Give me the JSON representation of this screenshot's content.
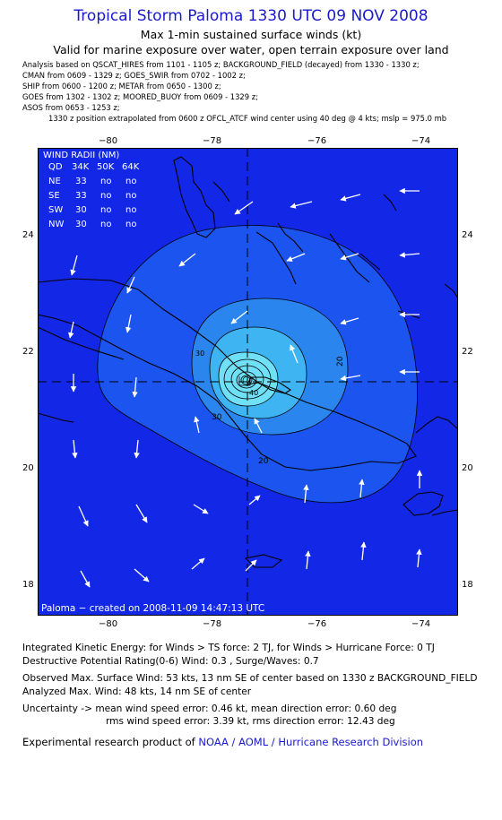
{
  "header": {
    "title": "Tropical Storm Paloma 1330 UTC 09 NOV 2008",
    "subtitle": "Max 1-min sustained surface winds (kt)",
    "valid_note": "Valid for marine exposure over water, open terrain exposure over land"
  },
  "analysis_lines": [
    "Analysis based on  QSCAT_HIRES from 1101 - 1105 z;  BACKGROUND_FIELD (decayed) from 1330 - 1330 z;",
    "CMAN from 0609 - 1329 z;  GOES_SWIR from 0702 - 1002 z;",
    "SHIP from 0600 - 1200 z;  METAR from 0650 - 1300 z;",
    "GOES from 1302 - 1302 z;  MOORED_BUOY from 0609 - 1329 z;",
    "ASOS from 0653 - 1253 z;"
  ],
  "position_note": "1330 z position extrapolated from 0600 z OFCL_ATCF wind center using 40 deg @ 4 kts; mslp = 975.0 mb",
  "map": {
    "lon_ticks": [
      "−80",
      "−78",
      "−76",
      "−74"
    ],
    "lat_ticks": [
      "24",
      "22",
      "20",
      "18"
    ],
    "wind_radii": {
      "title": "WIND RADII (NM)",
      "header": [
        "QD",
        "34K",
        "50K",
        "64K"
      ],
      "rows": [
        [
          "NE",
          "33",
          "no",
          "no"
        ],
        [
          "SE",
          "33",
          "no",
          "no"
        ],
        [
          "SW",
          "30",
          "no",
          "no"
        ],
        [
          "NW",
          "30",
          "no",
          "no"
        ]
      ]
    },
    "contour_labels": [
      "30",
      "20",
      "20",
      "40",
      "30"
    ],
    "credit": "Paloma − created on 2008-11-09 14:47:13 UTC",
    "colors": {
      "outer": "#1228e6",
      "band20": "#1c54f0",
      "band30": "#2a86ee",
      "band40": "#3fb4f2",
      "core": "#6fe0f5",
      "land": "#000000"
    }
  },
  "footer": {
    "ike": "Integrated Kinetic Energy:  for Winds > TS force: 2 TJ,  for Winds > Hurricane Force: 0 TJ",
    "dpr": "Destructive Potential Rating(0-6)   Wind: 0.3 , Surge/Waves: 0.7",
    "observed": "Observed Max. Surface Wind: 53 kts, 13 nm SE of center based on 1330 z BACKGROUND_FIELD",
    "analyzed": "Analyzed Max. Wind: 48 kts, 14 nm SE of center",
    "uncertainty1": "Uncertainty -> mean wind speed error: 0.46 kt,   mean direction error: 0.60 deg",
    "uncertainty2": "rms wind speed error: 3.39 kt,   rms direction error: 12.43 deg",
    "credit_prefix": "Experimental research product of ",
    "credit_link": "NOAA / AOML / Hurricane Research Division"
  }
}
